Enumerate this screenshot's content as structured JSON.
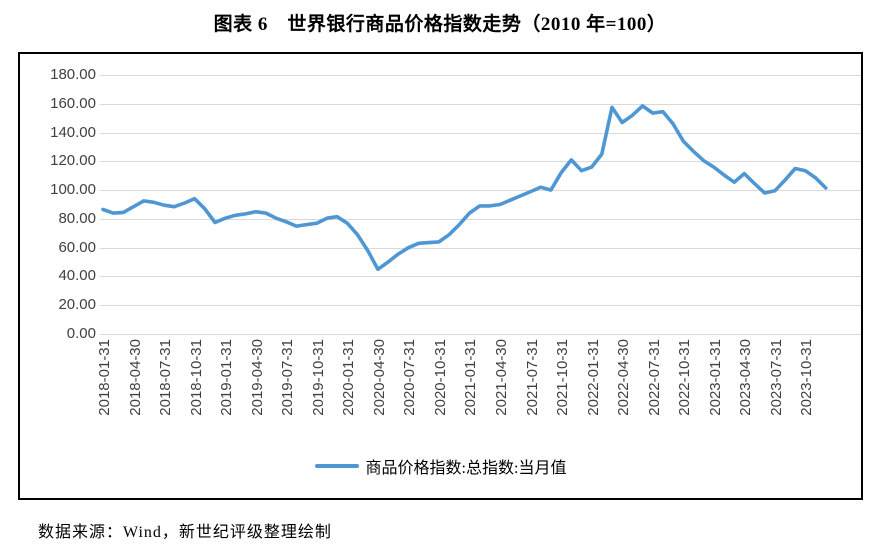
{
  "title": "图表 6　世界银行商品价格指数走势（2010 年=100）",
  "legend": "商品价格指数:总指数:当月值",
  "source": "数据来源：Wind，新世纪评级整理绘制",
  "colors": {
    "line": "#4f97d3",
    "grid": "#d9d9d9",
    "border": "#000000",
    "axis_text": "#404040"
  },
  "chart_data": {
    "type": "line",
    "title": "图表 6　世界银行商品价格指数走势（2010 年=100）",
    "xlabel": "",
    "ylabel": "",
    "ylim": [
      0,
      180
    ],
    "y_step": 20,
    "grid": "horizontal",
    "legend_position": "bottom",
    "x": [
      "2018-01-31",
      "2018-02-28",
      "2018-03-31",
      "2018-04-30",
      "2018-05-31",
      "2018-06-30",
      "2018-07-31",
      "2018-08-31",
      "2018-09-30",
      "2018-10-31",
      "2018-11-30",
      "2018-12-31",
      "2019-01-31",
      "2019-02-28",
      "2019-03-31",
      "2019-04-30",
      "2019-05-31",
      "2019-06-30",
      "2019-07-31",
      "2019-08-31",
      "2019-09-30",
      "2019-10-31",
      "2019-11-30",
      "2019-12-31",
      "2020-01-31",
      "2020-02-29",
      "2020-03-31",
      "2020-04-30",
      "2020-05-31",
      "2020-06-30",
      "2020-07-31",
      "2020-08-31",
      "2020-09-30",
      "2020-10-31",
      "2020-11-30",
      "2020-12-31",
      "2021-01-31",
      "2021-02-28",
      "2021-03-31",
      "2021-04-30",
      "2021-05-31",
      "2021-06-30",
      "2021-07-31",
      "2021-08-31",
      "2021-09-30",
      "2021-10-31",
      "2021-11-30",
      "2021-12-31",
      "2022-01-31",
      "2022-02-28",
      "2022-03-31",
      "2022-04-30",
      "2022-05-31",
      "2022-06-30",
      "2022-07-31",
      "2022-08-31",
      "2022-09-30",
      "2022-10-31",
      "2022-11-30",
      "2022-12-31",
      "2023-01-31",
      "2023-02-28",
      "2023-03-31",
      "2023-04-30",
      "2023-05-31",
      "2023-06-30",
      "2023-07-31",
      "2023-08-31",
      "2023-09-30",
      "2023-10-31",
      "2023-11-30",
      "2023-12-31"
    ],
    "x_tick_labels": [
      "2018-01-31",
      "2018-04-30",
      "2018-07-31",
      "2018-10-31",
      "2019-01-31",
      "2019-04-30",
      "2019-07-31",
      "2019-10-31",
      "2020-01-31",
      "2020-04-30",
      "2020-07-31",
      "2020-10-31",
      "2021-01-31",
      "2021-04-30",
      "2021-07-31",
      "2021-10-31",
      "2022-01-31",
      "2022-04-30",
      "2022-07-31",
      "2022-10-31",
      "2023-01-31",
      "2023-04-30",
      "2023-07-31",
      "2023-10-31"
    ],
    "y_tick_labels": [
      "180.00",
      "160.00",
      "140.00",
      "120.00",
      "100.00",
      "80.00",
      "60.00",
      "40.00",
      "20.00",
      "0.00"
    ],
    "series": [
      {
        "name": "商品价格指数:总指数:当月值",
        "values": [
          86.5,
          84.0,
          84.5,
          88.5,
          92.5,
          91.5,
          89.5,
          88.5,
          91.0,
          94.0,
          87.0,
          77.5,
          80.5,
          82.5,
          83.5,
          85.0,
          84.0,
          80.5,
          78.0,
          75.0,
          76.0,
          77.0,
          80.5,
          81.5,
          77.0,
          69.0,
          58.0,
          45.0,
          50.0,
          55.5,
          60.0,
          63.0,
          63.5,
          64.0,
          69.0,
          76.0,
          84.0,
          89.0,
          89.0,
          90.0,
          93.0,
          96.0,
          99.0,
          102.0,
          100.0,
          112.0,
          121.0,
          113.5,
          116.0,
          125.0,
          157.5,
          147.0,
          152.0,
          158.5,
          153.5,
          154.5,
          146.0,
          134.0,
          127.0,
          120.5,
          116.0,
          110.5,
          105.5,
          111.5,
          104.5,
          98.0,
          99.5,
          107.0,
          115.0,
          113.5,
          108.5,
          101.5
        ]
      }
    ]
  }
}
